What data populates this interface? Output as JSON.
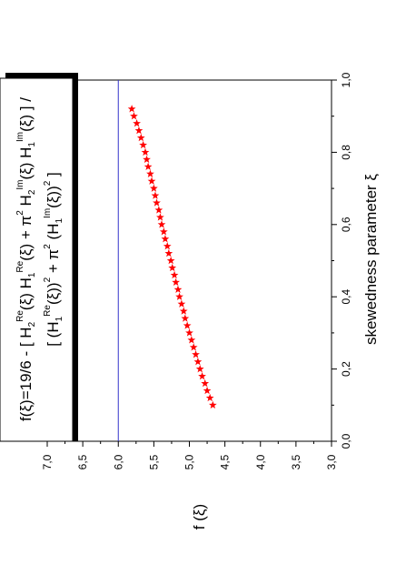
{
  "chart_data": {
    "type": "scatter",
    "orientation": "rotated-90",
    "xlabel": "skewedness parameter ξ",
    "ylabel": "f (ξ)",
    "xlim": [
      0.0,
      1.0
    ],
    "ylim": [
      3.0,
      7.0
    ],
    "x_ticks": [
      "0,0",
      "0,2",
      "0,4",
      "0,6",
      "0,8",
      "1,0"
    ],
    "y_ticks": [
      "3,0",
      "3,5",
      "4,0",
      "4,5",
      "5,0",
      "5,5",
      "6,0",
      "6,5",
      "7,0"
    ],
    "x_tick_values": [
      0.0,
      0.2,
      0.4,
      0.6,
      0.8,
      1.0
    ],
    "y_tick_values": [
      3.0,
      3.5,
      4.0,
      4.5,
      5.0,
      5.5,
      6.0,
      6.5,
      7.0
    ],
    "reference_line": {
      "y": 6.0,
      "color": "#3333cc"
    },
    "marker": {
      "shape": "star",
      "color": "#ff0000"
    },
    "series": [
      {
        "x": [
          0.1,
          0.12,
          0.14,
          0.16,
          0.18,
          0.2,
          0.22,
          0.24,
          0.26,
          0.28,
          0.3,
          0.32,
          0.34,
          0.36,
          0.38,
          0.4,
          0.42,
          0.44,
          0.46,
          0.48,
          0.5,
          0.52,
          0.54,
          0.56,
          0.58,
          0.6,
          0.62,
          0.64,
          0.66,
          0.68,
          0.7,
          0.72,
          0.74,
          0.76,
          0.78,
          0.8,
          0.82,
          0.84,
          0.86,
          0.88,
          0.9,
          0.92
        ],
        "y": [
          4.67,
          4.71,
          4.75,
          4.78,
          4.82,
          4.85,
          4.88,
          4.91,
          4.94,
          4.97,
          5.0,
          5.03,
          5.06,
          5.08,
          5.11,
          5.14,
          5.16,
          5.19,
          5.21,
          5.24,
          5.26,
          5.29,
          5.31,
          5.34,
          5.36,
          5.39,
          5.41,
          5.43,
          5.46,
          5.48,
          5.5,
          5.53,
          5.55,
          5.58,
          5.6,
          5.62,
          5.65,
          5.68,
          5.71,
          5.74,
          5.78,
          5.81
        ]
      }
    ],
    "legend_box": {
      "line1": {
        "parts": [
          {
            "t": "f(ξ)=19/6 - [ H"
          },
          {
            "sub": "2"
          },
          {
            "sup": "Re"
          },
          {
            "t": "(ξ) H"
          },
          {
            "sub": "1"
          },
          {
            "sup": "Re"
          },
          {
            "t": "(ξ) + π"
          },
          {
            "sup": "2"
          },
          {
            "t": " H"
          },
          {
            "sub": "2"
          },
          {
            "sup": "Im"
          },
          {
            "t": "(ξ) H"
          },
          {
            "sub": "1"
          },
          {
            "sup": "Im"
          },
          {
            "t": "(ξ) ] /"
          }
        ]
      },
      "line2": {
        "parts": [
          {
            "t": "[ (H"
          },
          {
            "sub": "1"
          },
          {
            "sup": "Re"
          },
          {
            "t": "(ξ))"
          },
          {
            "sup": "2"
          },
          {
            "t": " + π"
          },
          {
            "sup": "2"
          },
          {
            "t": " (H"
          },
          {
            "sub": "1"
          },
          {
            "sup": "Im"
          },
          {
            "t": "(ξ))"
          },
          {
            "sup": "2"
          },
          {
            "t": " ]"
          }
        ]
      }
    }
  }
}
